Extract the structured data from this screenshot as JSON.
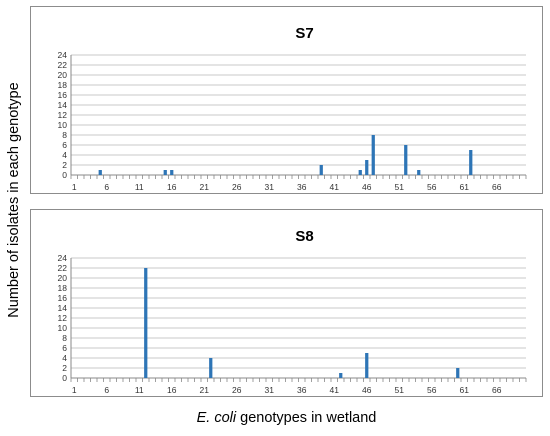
{
  "y_axis_label": "Number of isolates in each genotype",
  "x_axis_label": {
    "italic": "E. coli",
    "rest": " genotypes in wetland"
  },
  "chart_data": [
    {
      "type": "bar",
      "title": "S7",
      "ylim": [
        0,
        24
      ],
      "yticks": [
        0,
        2,
        4,
        6,
        8,
        10,
        12,
        14,
        16,
        18,
        20,
        22,
        24
      ],
      "xlim": [
        1,
        70
      ],
      "xtick_labels": [
        1,
        6,
        11,
        16,
        21,
        26,
        31,
        36,
        41,
        46,
        51,
        56,
        61,
        66
      ],
      "grid": true,
      "color": "#2e75b6",
      "x": [
        5,
        15,
        16,
        39,
        45,
        46,
        47,
        52,
        54,
        62
      ],
      "values": [
        1,
        1,
        1,
        2,
        1,
        3,
        8,
        6,
        1,
        5
      ]
    },
    {
      "type": "bar",
      "title": "S8",
      "ylim": [
        0,
        24
      ],
      "yticks": [
        0,
        2,
        4,
        6,
        8,
        10,
        12,
        14,
        16,
        18,
        20,
        22,
        24
      ],
      "xlim": [
        1,
        70
      ],
      "xtick_labels": [
        1,
        6,
        11,
        16,
        21,
        26,
        31,
        36,
        41,
        46,
        51,
        56,
        61,
        66
      ],
      "grid": true,
      "color": "#2e75b6",
      "x": [
        12,
        22,
        42,
        46,
        60
      ],
      "values": [
        22,
        4,
        1,
        5,
        2
      ]
    }
  ]
}
